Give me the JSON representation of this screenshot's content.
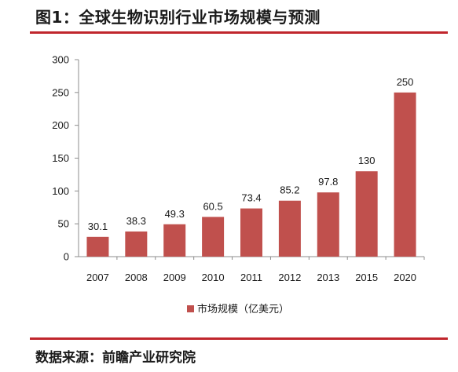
{
  "figure": {
    "title": "图1：全球生物识别行业市场规模与预测",
    "source": "数据来源：前瞻产业研究院"
  },
  "chart_data": {
    "type": "bar",
    "title": "",
    "xlabel": "",
    "ylabel": "",
    "categories": [
      "2007",
      "2008",
      "2009",
      "2010",
      "2011",
      "2012",
      "2013",
      "2015",
      "2020"
    ],
    "series": [
      {
        "name": "市场规模（亿美元）",
        "values": [
          30.1,
          38.3,
          49.3,
          60.5,
          73.4,
          85.2,
          97.8,
          130,
          250
        ],
        "data_labels": [
          "30.1",
          "38.3",
          "49.3",
          "60.5",
          "73.4",
          "85.2",
          "97.8",
          "130",
          "250"
        ]
      }
    ],
    "ylim": [
      0,
      300
    ],
    "yticks": [
      0,
      50,
      100,
      150,
      200,
      250,
      300
    ],
    "grid": false,
    "legend_position": "bottom",
    "colors": {
      "bar": "#c0504d",
      "axis": "#8c8c8c",
      "accent_rule": "#c0262c"
    }
  }
}
